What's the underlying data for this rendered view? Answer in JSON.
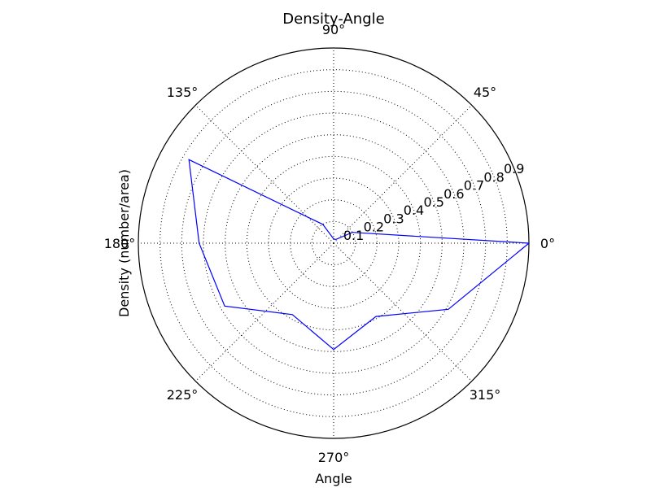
{
  "chart_data": {
    "type": "line",
    "projection": "polar",
    "title": "Density-Angle",
    "xlabel": "Angle",
    "ylabel": "Density (number/area)",
    "angle_ticks_deg": [
      0,
      45,
      90,
      135,
      180,
      225,
      270,
      315
    ],
    "angle_tick_labels": [
      "0°",
      "45°",
      "90°",
      "135°",
      "180°",
      "225°",
      "270°",
      "315°"
    ],
    "radial_ticks": [
      0.1,
      0.2,
      0.3,
      0.4,
      0.5,
      0.6,
      0.7,
      0.8,
      0.9
    ],
    "radial_tick_labels": [
      "0.1",
      "0.2",
      "0.3",
      "0.4",
      "0.5",
      "0.6",
      "0.7",
      "0.8",
      "0.9"
    ],
    "rlim": [
      0,
      0.9
    ],
    "grid": true,
    "series": [
      {
        "color": "#0000ff",
        "theta_deg": [
          0,
          30,
          60,
          90,
          120,
          150,
          180,
          210,
          240,
          270,
          300,
          330,
          0
        ],
        "r": [
          0.9,
          0.1,
          0.02,
          0.02,
          0.1,
          0.77,
          0.62,
          0.58,
          0.38,
          0.49,
          0.39,
          0.61,
          0.9
        ]
      }
    ]
  }
}
